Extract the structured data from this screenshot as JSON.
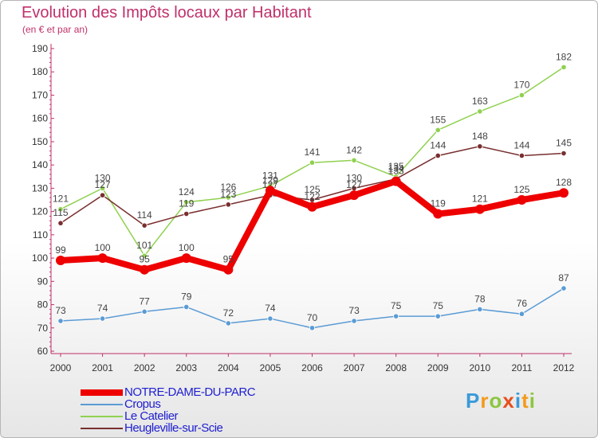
{
  "title": "Evolution des Impôts locaux par Habitant",
  "subtitle": "(en € et par an)",
  "logo": {
    "text": "Proxiti",
    "colors": [
      "#3a9ad9",
      "#f29b1d",
      "#8cc63f",
      "#e94e1b"
    ]
  },
  "chart_data": {
    "type": "line",
    "x": [
      "2000",
      "2001",
      "2002",
      "2003",
      "2004",
      "2005",
      "2006",
      "2007",
      "2008",
      "2009",
      "2010",
      "2011",
      "2012"
    ],
    "ylim": [
      60,
      190
    ],
    "yticks": [
      60,
      70,
      80,
      90,
      100,
      110,
      120,
      130,
      140,
      150,
      160,
      170,
      180,
      190
    ],
    "grid": false,
    "legend_position": "bottom-left",
    "series": [
      {
        "name": "NOTRE-DAME-DU-PARC",
        "color": "#ee0000",
        "emphasis": true,
        "values": [
          99,
          100,
          95,
          100,
          95,
          129,
          122,
          127,
          133,
          119,
          121,
          125,
          128
        ]
      },
      {
        "name": "Cropus",
        "color": "#5b9bd5",
        "emphasis": false,
        "values": [
          73,
          74,
          77,
          79,
          72,
          74,
          70,
          73,
          75,
          75,
          78,
          76,
          87
        ]
      },
      {
        "name": "Le Catelier",
        "color": "#8fd14f",
        "emphasis": false,
        "values": [
          121,
          130,
          101,
          124,
          126,
          131,
          141,
          142,
          135,
          155,
          163,
          170,
          182
        ]
      },
      {
        "name": "Heugleville-sur-Scie",
        "color": "#7a2e2e",
        "emphasis": false,
        "values": [
          115,
          127,
          114,
          119,
          123,
          127,
          125,
          130,
          134,
          144,
          148,
          144,
          145
        ]
      }
    ]
  }
}
